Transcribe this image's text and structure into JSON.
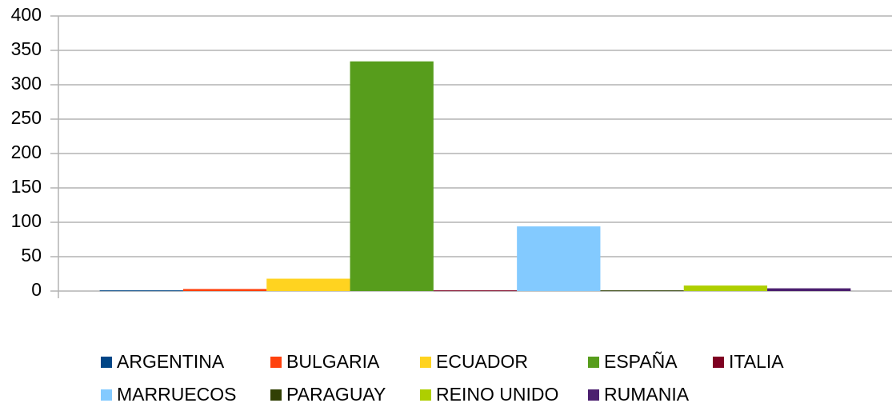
{
  "chart_data": {
    "type": "bar",
    "categories": [
      null
    ],
    "series": [
      {
        "name": "ARGENTINA",
        "color": "#004586",
        "values": [
          1
        ]
      },
      {
        "name": "BULGARIA",
        "color": "#ff420e",
        "values": [
          3
        ]
      },
      {
        "name": "ECUADOR",
        "color": "#ffd320",
        "values": [
          18
        ]
      },
      {
        "name": "ESPAÑA",
        "color": "#579d1c",
        "values": [
          334
        ]
      },
      {
        "name": "ITALIA",
        "color": "#7e0021",
        "values": [
          1
        ]
      },
      {
        "name": "MARRUECOS",
        "color": "#83caff",
        "values": [
          94
        ]
      },
      {
        "name": "PARAGUAY",
        "color": "#314004",
        "values": [
          1
        ]
      },
      {
        "name": "REINO UNIDO",
        "color": "#aecf00",
        "values": [
          8
        ]
      },
      {
        "name": "RUMANIA",
        "color": "#4b1f6f",
        "values": [
          4
        ]
      }
    ],
    "ylim": [
      0,
      400
    ],
    "yticks": [
      0,
      50,
      100,
      150,
      200,
      250,
      300,
      350,
      400
    ],
    "grid": true,
    "legend": "bottom"
  }
}
